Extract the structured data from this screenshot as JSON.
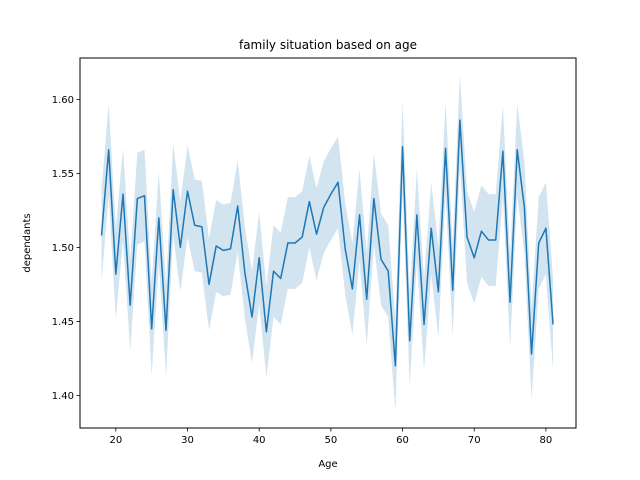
{
  "chart_data": {
    "type": "line",
    "title": "family situation based on age",
    "xlabel": "Age",
    "ylabel": "dependants",
    "xlim": [
      15,
      84.2
    ],
    "ylim": [
      1.378,
      1.628
    ],
    "xticks": [
      20,
      30,
      40,
      50,
      60,
      70,
      80
    ],
    "yticks": [
      1.4,
      1.45,
      1.5,
      1.55,
      1.6
    ],
    "xtick_labels": [
      "20",
      "30",
      "40",
      "50",
      "60",
      "70",
      "80"
    ],
    "ytick_labels": [
      "1.40",
      "1.45",
      "1.50",
      "1.55",
      "1.60"
    ],
    "grid": false,
    "legend": "none",
    "colors": {
      "line": "#1f77b4",
      "band": "#1f77b4"
    },
    "series": [
      {
        "x": [
          18,
          19,
          20,
          21,
          22,
          23,
          24,
          25,
          26,
          27,
          28,
          29,
          30,
          31,
          32,
          33,
          34,
          35,
          36,
          37,
          38,
          39,
          40,
          41,
          42,
          43,
          44,
          45,
          46,
          47,
          48,
          49,
          50,
          51,
          52,
          53,
          54,
          55,
          56,
          57,
          58,
          59,
          60,
          61,
          62,
          63,
          64,
          65,
          66,
          67,
          68,
          69,
          70,
          71,
          72,
          73,
          74,
          75,
          76,
          77,
          78,
          79,
          80,
          81
        ],
        "y": [
          1.508,
          1.566,
          1.482,
          1.536,
          1.461,
          1.533,
          1.535,
          1.445,
          1.52,
          1.444,
          1.539,
          1.5,
          1.538,
          1.515,
          1.514,
          1.475,
          1.501,
          1.498,
          1.499,
          1.528,
          1.483,
          1.453,
          1.493,
          1.443,
          1.484,
          1.479,
          1.503,
          1.503,
          1.507,
          1.531,
          1.509,
          1.527,
          1.536,
          1.544,
          1.499,
          1.472,
          1.522,
          1.465,
          1.533,
          1.492,
          1.484,
          1.42,
          1.568,
          1.437,
          1.522,
          1.448,
          1.513,
          1.47,
          1.567,
          1.471,
          1.586,
          1.507,
          1.493,
          1.511,
          1.505,
          1.505,
          1.565,
          1.463,
          1.566,
          1.527,
          1.428,
          1.503,
          1.513,
          1.448
        ],
        "ci_low": [
          1.477,
          1.535,
          1.452,
          1.505,
          1.43,
          1.502,
          1.504,
          1.414,
          1.489,
          1.413,
          1.508,
          1.47,
          1.507,
          1.484,
          1.483,
          1.444,
          1.47,
          1.467,
          1.468,
          1.497,
          1.452,
          1.422,
          1.462,
          1.412,
          1.453,
          1.448,
          1.472,
          1.472,
          1.476,
          1.5,
          1.478,
          1.496,
          1.505,
          1.513,
          1.468,
          1.441,
          1.491,
          1.434,
          1.502,
          1.461,
          1.453,
          1.389,
          1.537,
          1.406,
          1.491,
          1.417,
          1.482,
          1.439,
          1.536,
          1.44,
          1.555,
          1.476,
          1.462,
          1.48,
          1.474,
          1.474,
          1.534,
          1.432,
          1.535,
          1.496,
          1.397,
          1.472,
          1.482,
          1.417
        ],
        "ci_high": [
          1.539,
          1.597,
          1.513,
          1.567,
          1.492,
          1.564,
          1.566,
          1.476,
          1.551,
          1.475,
          1.57,
          1.531,
          1.569,
          1.546,
          1.545,
          1.506,
          1.532,
          1.529,
          1.53,
          1.559,
          1.514,
          1.484,
          1.524,
          1.474,
          1.515,
          1.51,
          1.534,
          1.534,
          1.538,
          1.562,
          1.54,
          1.558,
          1.567,
          1.575,
          1.53,
          1.503,
          1.553,
          1.496,
          1.564,
          1.523,
          1.515,
          1.451,
          1.599,
          1.468,
          1.553,
          1.479,
          1.544,
          1.501,
          1.598,
          1.502,
          1.617,
          1.538,
          1.524,
          1.542,
          1.536,
          1.536,
          1.596,
          1.494,
          1.597,
          1.558,
          1.459,
          1.534,
          1.544,
          1.479
        ]
      }
    ]
  }
}
